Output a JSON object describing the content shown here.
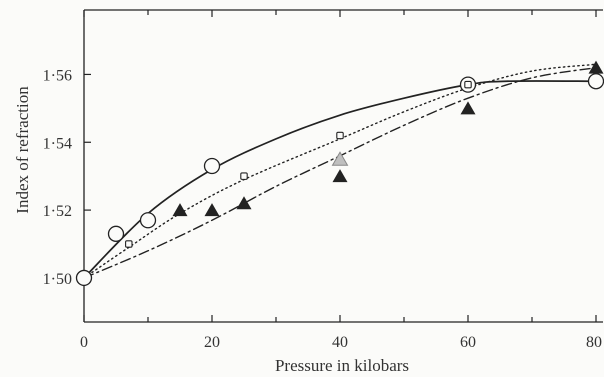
{
  "chart_data": {
    "type": "scatter",
    "xlabel": "Pressure in kilobars",
    "ylabel": "Index of refraction",
    "xlim": [
      0,
      80
    ],
    "ylim": [
      1.487,
      1.579
    ],
    "xticks": [
      0,
      20,
      40,
      60,
      80
    ],
    "xtick_labels": [
      "0",
      "20",
      "40",
      "60",
      "80"
    ],
    "yticks": [
      1.5,
      1.52,
      1.54,
      1.56
    ],
    "ytick_labels": [
      "1·50",
      "1·52",
      "1·54",
      "1·56"
    ],
    "grid": false,
    "colors": {
      "ink": "#222222",
      "background": "#fbfbf9",
      "faint_fill": "#bfbfbf",
      "faint_stroke": "#888888"
    },
    "series": [
      {
        "marker": "open-circle",
        "line": "solid",
        "points": [
          [
            0,
            1.5
          ],
          [
            5,
            1.513
          ],
          [
            10,
            1.517
          ],
          [
            20,
            1.533
          ],
          [
            60,
            1.557
          ],
          [
            80,
            1.558
          ]
        ],
        "curve": [
          [
            0,
            1.5
          ],
          [
            10,
            1.519
          ],
          [
            20,
            1.532
          ],
          [
            30,
            1.541
          ],
          [
            40,
            1.548
          ],
          [
            50,
            1.553
          ],
          [
            60,
            1.557
          ],
          [
            66,
            1.558
          ],
          [
            80,
            1.558
          ]
        ]
      },
      {
        "marker": "small-open-square",
        "line": "dotted",
        "points": [
          [
            7,
            1.51
          ],
          [
            25,
            1.53
          ],
          [
            40,
            1.542
          ],
          [
            60,
            1.557
          ]
        ],
        "curve": [
          [
            0,
            1.5
          ],
          [
            7,
            1.509
          ],
          [
            15,
            1.519
          ],
          [
            25,
            1.529
          ],
          [
            40,
            1.541
          ],
          [
            50,
            1.549
          ],
          [
            60,
            1.556
          ],
          [
            70,
            1.561
          ],
          [
            80,
            1.563
          ]
        ]
      },
      {
        "marker": "filled-triangle",
        "line": "dash-dot",
        "points": [
          [
            15,
            1.52
          ],
          [
            20,
            1.52
          ],
          [
            25,
            1.522
          ],
          [
            40,
            1.53
          ],
          [
            60,
            1.55
          ],
          [
            80,
            1.562
          ]
        ],
        "curve": [
          [
            0,
            1.5
          ],
          [
            10,
            1.508
          ],
          [
            20,
            1.517
          ],
          [
            30,
            1.527
          ],
          [
            40,
            1.536
          ],
          [
            50,
            1.545
          ],
          [
            60,
            1.553
          ],
          [
            70,
            1.559
          ],
          [
            80,
            1.562
          ]
        ]
      },
      {
        "marker": "open-triangle",
        "points": [
          [
            40,
            1.535
          ]
        ],
        "curve": []
      }
    ]
  }
}
